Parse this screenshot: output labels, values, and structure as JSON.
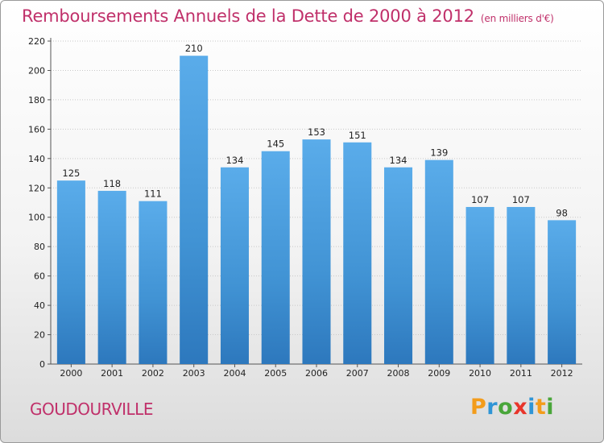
{
  "title": "Remboursements Annuels de la Dette de 2000 à 2012",
  "subtitle": "(en milliers d'€)",
  "commune": "GOUDOURVILLE",
  "logo": {
    "letters": [
      "P",
      "r",
      "o",
      "x",
      "i",
      "t",
      "i"
    ],
    "colors": [
      "#f39c1b",
      "#2f95d6",
      "#49a63a",
      "#e8352b",
      "#2f95d6",
      "#f39c1b",
      "#49a63a"
    ]
  },
  "chart_data": {
    "type": "bar",
    "categories": [
      "2000",
      "2001",
      "2002",
      "2003",
      "2004",
      "2005",
      "2006",
      "2007",
      "2008",
      "2009",
      "2010",
      "2011",
      "2012"
    ],
    "values": [
      125,
      118,
      111,
      210,
      134,
      145,
      153,
      151,
      134,
      139,
      107,
      107,
      98
    ],
    "title": "Remboursements Annuels de la Dette de 2000 à 2012",
    "xlabel": "",
    "ylabel": "",
    "ylim": [
      0,
      220
    ],
    "yticks": [
      0,
      20,
      40,
      60,
      80,
      100,
      120,
      140,
      160,
      180,
      200,
      220
    ],
    "grid": true,
    "bar_color": "#4f9fdc"
  }
}
